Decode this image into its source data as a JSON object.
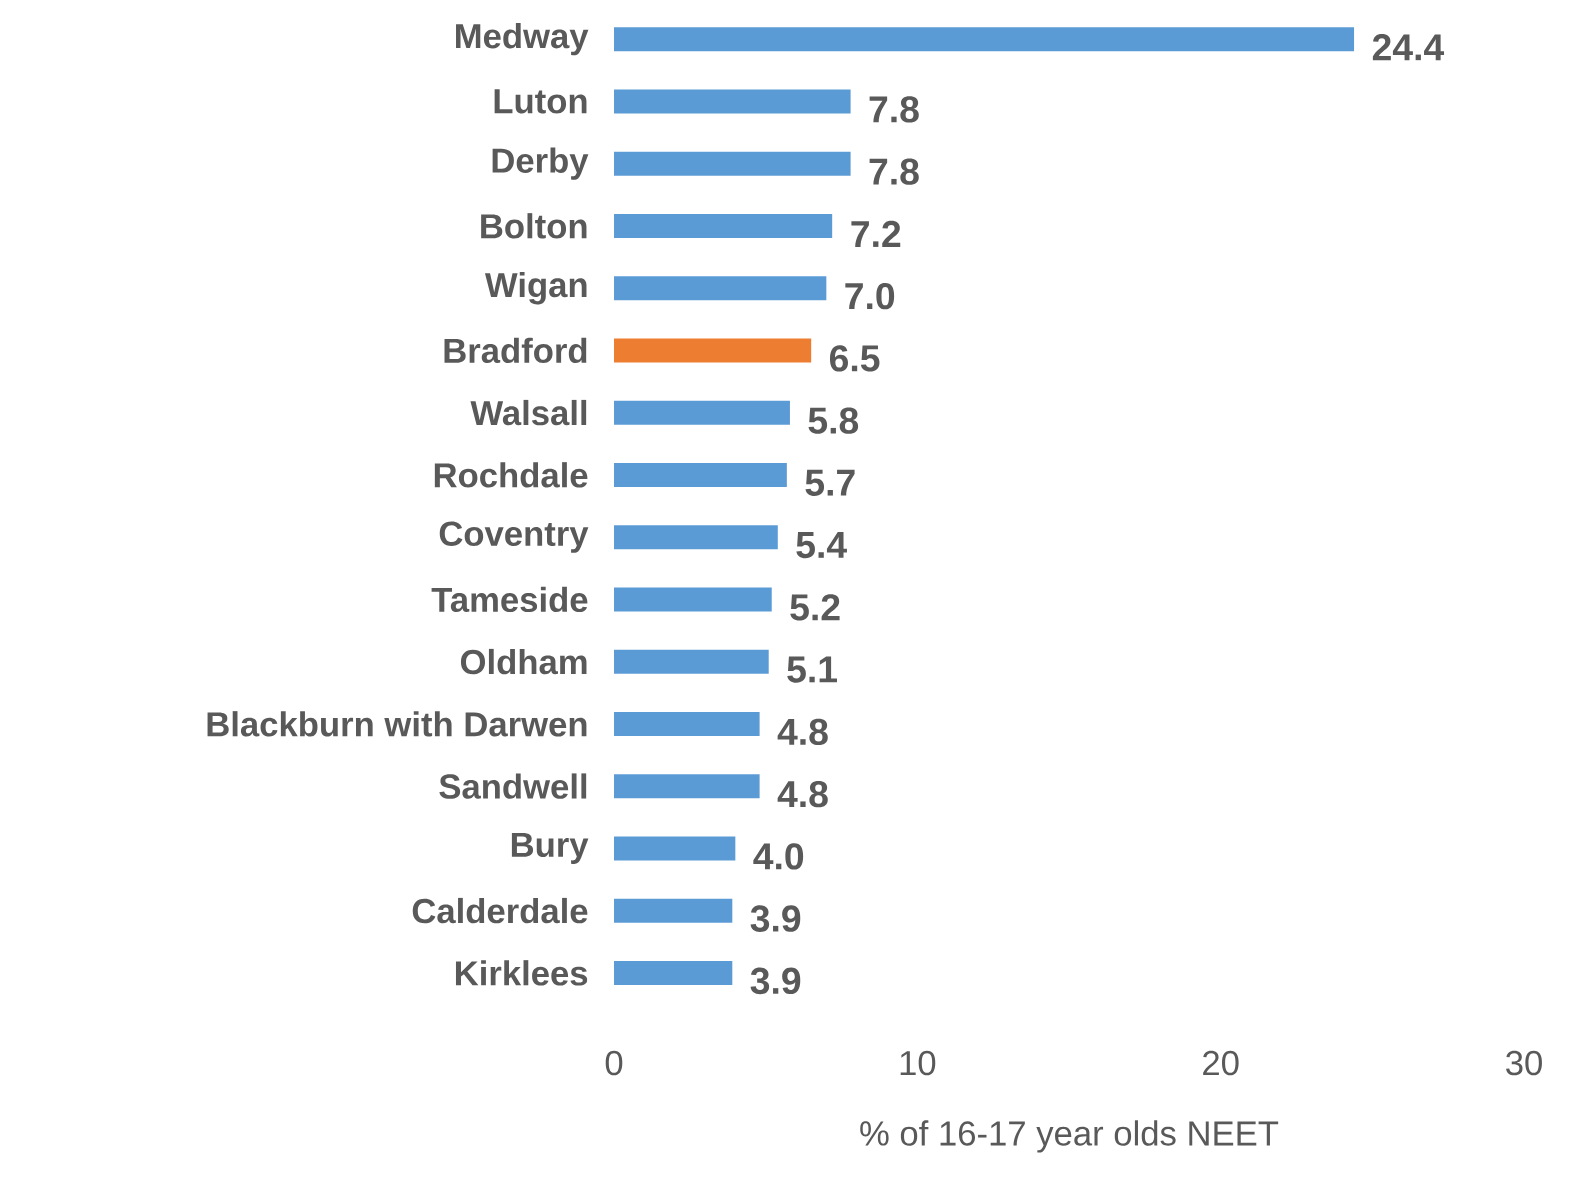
{
  "chart_data": {
    "type": "bar",
    "orientation": "horizontal",
    "categories": [
      "Medway",
      "Luton",
      "Derby",
      "Bolton",
      "Wigan",
      "Bradford",
      "Walsall",
      "Rochdale",
      "Coventry",
      "Tameside",
      "Oldham",
      "Blackburn with Darwen",
      "Sandwell",
      "Bury",
      "Calderdale",
      "Kirklees"
    ],
    "values": [
      24.4,
      7.8,
      7.8,
      7.2,
      7.0,
      6.5,
      5.8,
      5.7,
      5.4,
      5.2,
      5.1,
      4.8,
      4.8,
      4.0,
      3.9,
      3.9
    ],
    "value_labels": [
      "24.4",
      "7.8",
      "7.8",
      "7.2",
      "7.0",
      "6.5",
      "5.8",
      "5.7",
      "5.4",
      "5.2",
      "5.1",
      "4.8",
      "4.8",
      "4.0",
      "3.9",
      "3.9"
    ],
    "colors": [
      "#5b9bd5",
      "#5b9bd5",
      "#5b9bd5",
      "#5b9bd5",
      "#5b9bd5",
      "#ed7d31",
      "#5b9bd5",
      "#5b9bd5",
      "#5b9bd5",
      "#5b9bd5",
      "#5b9bd5",
      "#5b9bd5",
      "#5b9bd5",
      "#5b9bd5",
      "#5b9bd5",
      "#5b9bd5"
    ],
    "xlim": [
      0,
      30
    ],
    "xticks": [
      0,
      10,
      20,
      30
    ],
    "xlabel": "% of 16-17 year olds NEET",
    "grid": false
  }
}
